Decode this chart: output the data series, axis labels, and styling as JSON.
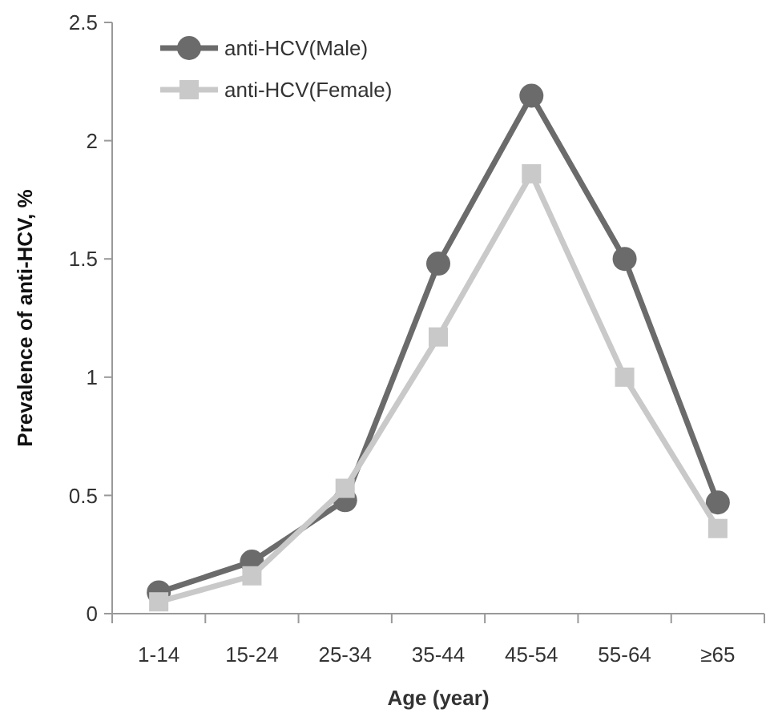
{
  "chart_data": {
    "type": "line",
    "xlabel": "Age (year)",
    "ylabel": "Prevalence of anti-HCV, %",
    "categories": [
      "1-14",
      "15-24",
      "25-34",
      "35-44",
      "45-54",
      "55-64",
      "≥65"
    ],
    "series": [
      {
        "name": "anti-HCV(Male)",
        "color": "#6b6b6b",
        "marker": "circle",
        "values": [
          0.09,
          0.22,
          0.48,
          1.48,
          2.19,
          1.5,
          0.47
        ]
      },
      {
        "name": "anti-HCV(Female)",
        "color": "#c9c9c9",
        "marker": "square",
        "values": [
          0.05,
          0.16,
          0.53,
          1.17,
          1.86,
          1.0,
          0.36
        ]
      }
    ],
    "ylim": [
      0,
      2.5
    ],
    "yticks": [
      0,
      0.5,
      1,
      1.5,
      2,
      2.5
    ],
    "grid": false,
    "legend": "top left",
    "line_style": "solid"
  }
}
